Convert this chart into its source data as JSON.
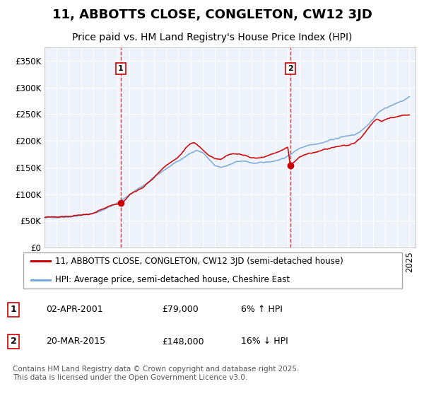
{
  "title": "11, ABBOTTS CLOSE, CONGLETON, CW12 3JD",
  "subtitle": "Price paid vs. HM Land Registry's House Price Index (HPI)",
  "background_color": "#ffffff",
  "plot_bg_color": "#eef2fa",
  "grid_color": "#ffffff",
  "legend_label_red": "11, ABBOTTS CLOSE, CONGLETON, CW12 3JD (semi-detached house)",
  "legend_label_blue": "HPI: Average price, semi-detached house, Cheshire East",
  "footnote": "Contains HM Land Registry data © Crown copyright and database right 2025.\nThis data is licensed under the Open Government Licence v3.0.",
  "ylim": [
    0,
    375000
  ],
  "xlim_start": 1995.0,
  "xlim_end": 2025.5,
  "red_color": "#cc0000",
  "blue_color": "#7aaadd",
  "marker_color": "#cc0000",
  "vline_color": "#cc0000",
  "title_fontsize": 13,
  "subtitle_fontsize": 10,
  "tick_fontsize": 8.5,
  "legend_fontsize": 8.5,
  "footnote_fontsize": 7.5,
  "marker1_x": 2001.25,
  "marker2_x": 2015.2,
  "marker1_y": 79000,
  "marker2_y": 148000,
  "hpi_xvals": [
    1995,
    1996,
    1997,
    1998,
    1999,
    2000,
    2001,
    2002,
    2003,
    2004,
    2005,
    2006,
    2007,
    2007.5,
    2008,
    2008.5,
    2009,
    2009.5,
    2010,
    2010.5,
    2011,
    2011.5,
    2012,
    2012.5,
    2013,
    2013.5,
    2014,
    2014.5,
    2015,
    2015.5,
    2016,
    2016.5,
    2017,
    2017.5,
    2018,
    2018.5,
    2019,
    2019.5,
    2020,
    2020.5,
    2021,
    2021.5,
    2022,
    2022.5,
    2023,
    2023.5,
    2024,
    2024.5,
    2025
  ],
  "hpi_yvals": [
    55000,
    57000,
    60000,
    63000,
    67000,
    75000,
    87000,
    102000,
    116000,
    132000,
    148000,
    163000,
    178000,
    183000,
    178000,
    165000,
    152000,
    150000,
    153000,
    157000,
    160000,
    160000,
    157000,
    156000,
    156000,
    158000,
    161000,
    165000,
    170000,
    178000,
    185000,
    190000,
    194000,
    197000,
    200000,
    204000,
    207000,
    210000,
    212000,
    213000,
    218000,
    228000,
    242000,
    255000,
    263000,
    268000,
    273000,
    278000,
    285000
  ],
  "prop_xvals": [
    1995,
    1996,
    1997,
    1998,
    1999,
    2000,
    2001,
    2001.25,
    2001.5,
    2002,
    2003,
    2004,
    2005,
    2006,
    2007,
    2007.3,
    2007.6,
    2008,
    2008.5,
    2009,
    2009.5,
    2010,
    2010.5,
    2011,
    2011.5,
    2012,
    2012.5,
    2013,
    2013.5,
    2014,
    2014.5,
    2015,
    2015.2,
    2015.5,
    2016,
    2016.5,
    2017,
    2017.5,
    2018,
    2018.5,
    2019,
    2019.5,
    2020,
    2020.5,
    2021,
    2021.5,
    2022,
    2022.3,
    2022.7,
    2023,
    2023.5,
    2024,
    2024.5,
    2025
  ],
  "prop_yvals": [
    56000,
    57000,
    58000,
    60000,
    63000,
    70000,
    77000,
    79000,
    82000,
    95000,
    110000,
    130000,
    152000,
    168000,
    190000,
    192000,
    188000,
    180000,
    170000,
    163000,
    160000,
    168000,
    172000,
    170000,
    167000,
    163000,
    162000,
    165000,
    168000,
    173000,
    178000,
    183000,
    148000,
    155000,
    163000,
    168000,
    170000,
    173000,
    176000,
    179000,
    182000,
    185000,
    186000,
    188000,
    196000,
    210000,
    225000,
    230000,
    225000,
    228000,
    232000,
    235000,
    238000,
    240000
  ]
}
